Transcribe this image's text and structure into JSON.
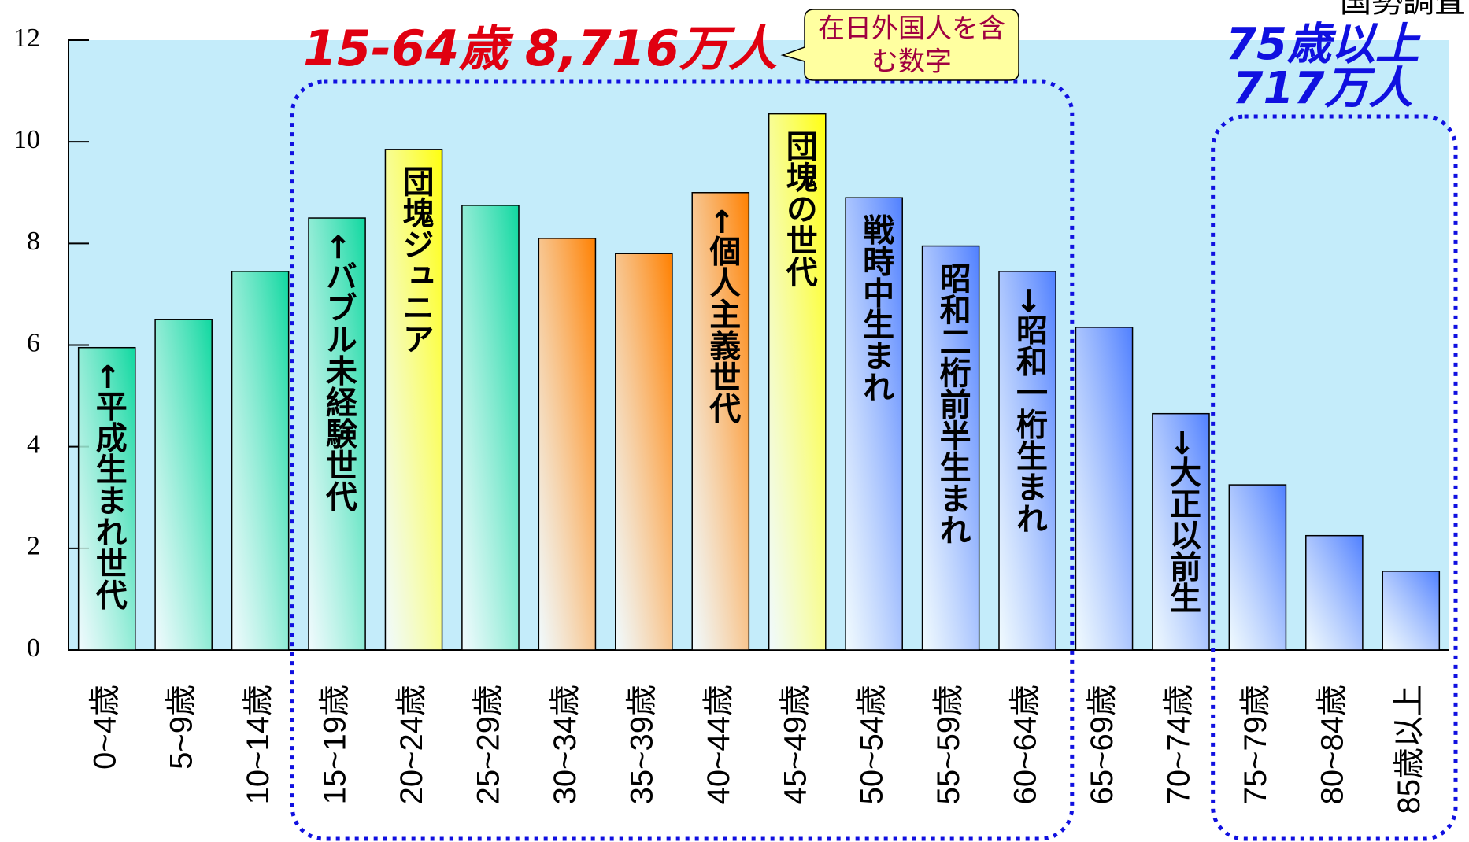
{
  "chart_data": {
    "type": "bar",
    "source": "国勢調査",
    "categories": [
      "0~4歳",
      "5~9歳",
      "10~14歳",
      "15~19歳",
      "20~24歳",
      "25~29歳",
      "30~34歳",
      "35~39歳",
      "40~44歳",
      "45~49歳",
      "50~54歳",
      "55~59歳",
      "60~64歳",
      "65~69歳",
      "70~74歳",
      "75~79歳",
      "80~84歳",
      "85歳以上"
    ],
    "values": [
      5.95,
      6.5,
      7.45,
      8.5,
      9.85,
      8.75,
      8.1,
      7.8,
      9.0,
      10.55,
      8.9,
      7.95,
      7.45,
      6.35,
      4.65,
      3.25,
      2.25,
      1.55
    ],
    "colors": [
      "#10d8a0",
      "#10d8a0",
      "#10d8a0",
      "#10d8a0",
      "#ffff10",
      "#10d8a0",
      "#ff8000",
      "#ff8000",
      "#ff8000",
      "#ffff10",
      "#5080ff",
      "#5080ff",
      "#5080ff",
      "#5080ff",
      "#5080ff",
      "#5080ff",
      "#5080ff",
      "#5080ff"
    ],
    "bar_labels": [
      "←平成生まれ世代",
      null,
      null,
      "←バブル未経験世代",
      "団塊ジュニア",
      null,
      null,
      null,
      "←個人主義世代",
      "団塊の世代",
      "戦時中生まれ",
      "昭和二桁前半生まれ",
      "→昭和一桁生まれ",
      null,
      "→大正以前生",
      null,
      null,
      null
    ],
    "ylim": [
      0,
      12
    ],
    "yticks": [
      0,
      2,
      4,
      6,
      8,
      10,
      12
    ],
    "annotations": {
      "working_age": "15-64歳 8,716万人",
      "note": [
        "在日外国人を含",
        "む数字"
      ],
      "elderly": [
        "75歳以上",
        "717万人"
      ]
    }
  }
}
